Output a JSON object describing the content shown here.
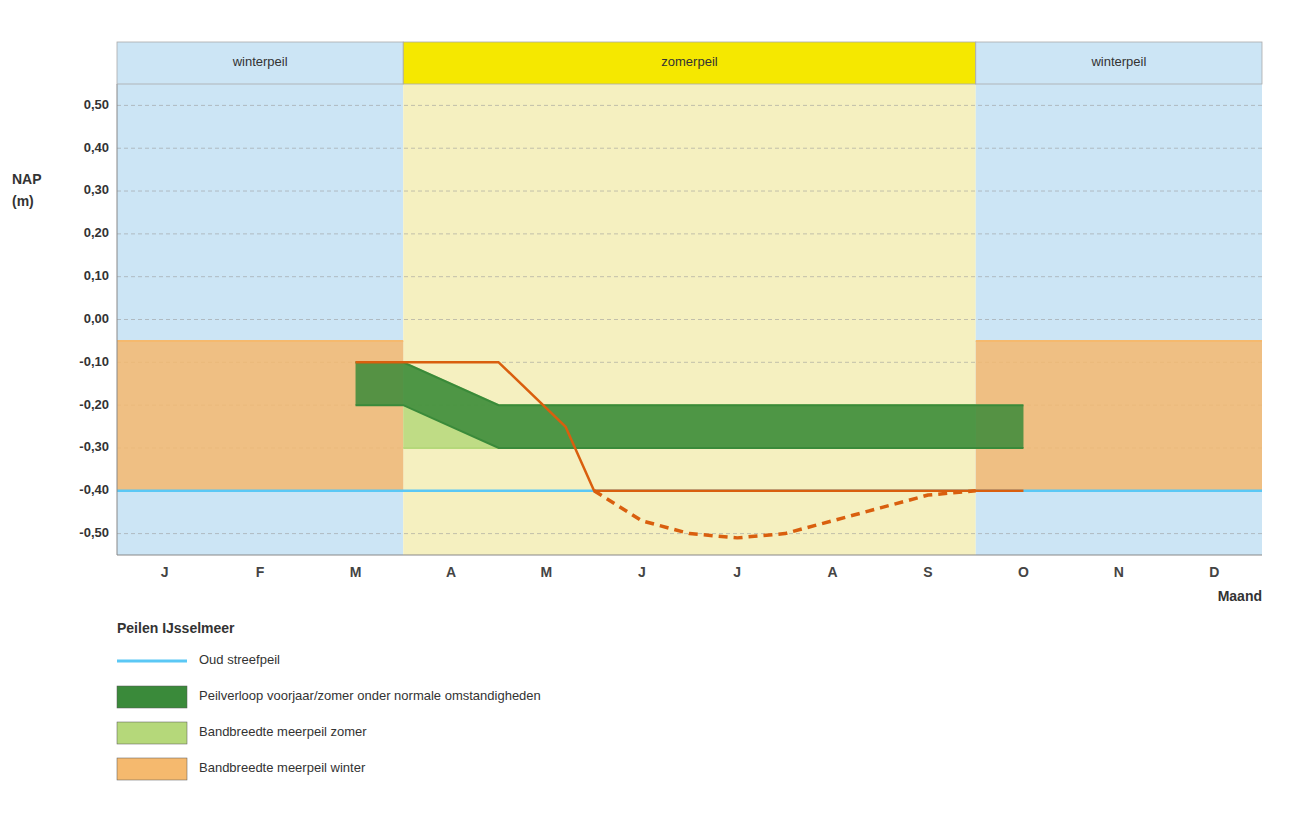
{
  "chart_data": {
    "type": "area",
    "xlabel": "Maand",
    "ylabel": [
      "NAP",
      "(m)"
    ],
    "xlim": [
      0,
      12
    ],
    "xticks": [
      {
        "value": 0.5,
        "label": "J"
      },
      {
        "value": 1.5,
        "label": "F"
      },
      {
        "value": 2.5,
        "label": "M"
      },
      {
        "value": 3.5,
        "label": "A"
      },
      {
        "value": 4.5,
        "label": "M"
      },
      {
        "value": 5.5,
        "label": "J"
      },
      {
        "value": 6.5,
        "label": "J"
      },
      {
        "value": 7.5,
        "label": "A"
      },
      {
        "value": 8.5,
        "label": "S"
      },
      {
        "value": 9.5,
        "label": "O"
      },
      {
        "value": 10.5,
        "label": "N"
      },
      {
        "value": 11.5,
        "label": "D"
      }
    ],
    "ylim": [
      -0.55,
      0.55
    ],
    "yticks": [
      {
        "value": 0.5,
        "label": "0,50"
      },
      {
        "value": 0.4,
        "label": "0,40"
      },
      {
        "value": 0.3,
        "label": "0,30"
      },
      {
        "value": 0.2,
        "label": "0,20"
      },
      {
        "value": 0.1,
        "label": "0,10"
      },
      {
        "value": 0.0,
        "label": "0,00"
      },
      {
        "value": -0.1,
        "label": "-0,10"
      },
      {
        "value": -0.2,
        "label": "-0,20"
      },
      {
        "value": -0.3,
        "label": "-0,30"
      },
      {
        "value": -0.4,
        "label": "-0,40"
      },
      {
        "value": -0.5,
        "label": "-0,50"
      }
    ],
    "grid": true,
    "legend_title": "Peilen IJsselmeer",
    "seasons": [
      {
        "name": "winterpeil",
        "x": [
          0,
          3
        ],
        "color": "#cce5f5",
        "header_color": "#cce5f5"
      },
      {
        "name": "zomerpeil",
        "x": [
          3,
          9
        ],
        "color": "#f5f0c0",
        "header_color": "#f5e800"
      },
      {
        "name": "winterpeil",
        "x": [
          9,
          12
        ],
        "color": "#cce5f5",
        "header_color": "#cce5f5"
      }
    ],
    "series": [
      {
        "name": "Bandbreedte meerpeil winter",
        "type": "band",
        "color": "#f5b96e",
        "x": [
          0,
          3,
          null,
          9,
          12
        ],
        "lower": [
          -0.4,
          -0.4,
          null,
          -0.4,
          -0.4
        ],
        "upper": [
          -0.05,
          -0.05,
          null,
          -0.05,
          -0.05
        ]
      },
      {
        "name": "Bandbreedte meerpeil zomer",
        "type": "band",
        "color": "#b5d87a",
        "x": [
          3.0,
          4.0,
          5.0,
          6.0,
          7.0,
          8.0,
          9.0
        ],
        "lower": [
          -0.3,
          -0.3,
          -0.3,
          -0.3,
          -0.3,
          -0.3,
          -0.3
        ],
        "upper": [
          -0.1,
          -0.2,
          -0.2,
          -0.2,
          -0.2,
          -0.2,
          -0.2
        ]
      },
      {
        "name": "Peilverloop voorjaar/zomer onder normale omstandigheden",
        "type": "band",
        "color": "#3a8a3a",
        "x": [
          2.5,
          3.0,
          4.0,
          5.0,
          6.0,
          7.0,
          8.0,
          9.0,
          9.5
        ],
        "lower": [
          -0.2,
          -0.2,
          -0.3,
          -0.3,
          -0.3,
          -0.3,
          -0.3,
          -0.3,
          -0.3
        ],
        "upper": [
          -0.1,
          -0.1,
          -0.2,
          -0.2,
          -0.2,
          -0.2,
          -0.2,
          -0.2,
          -0.2
        ]
      },
      {
        "name": "Oud streefpeil",
        "type": "hline",
        "color": "#5bc8f5",
        "values": [
          -0.4
        ]
      },
      {
        "type": "line",
        "color": "#d95f0e",
        "line_style": "solid",
        "x": [
          2.5,
          3.0,
          4.0,
          4.0,
          4.7,
          5.0,
          6.0,
          7.0,
          8.0,
          9.0,
          9.5
        ],
        "values": [
          -0.1,
          -0.1,
          -0.1,
          -0.1,
          -0.25,
          -0.4,
          -0.4,
          -0.4,
          -0.4,
          -0.4,
          -0.4
        ]
      },
      {
        "type": "line",
        "color": "#d95f0e",
        "line_style": "dashed",
        "x": [
          5.0,
          5.5,
          6.0,
          6.5,
          7.0,
          7.5,
          8.0,
          8.5,
          9.0
        ],
        "values": [
          -0.4,
          -0.47,
          -0.5,
          -0.51,
          -0.5,
          -0.47,
          -0.44,
          -0.41,
          -0.4
        ]
      }
    ]
  }
}
